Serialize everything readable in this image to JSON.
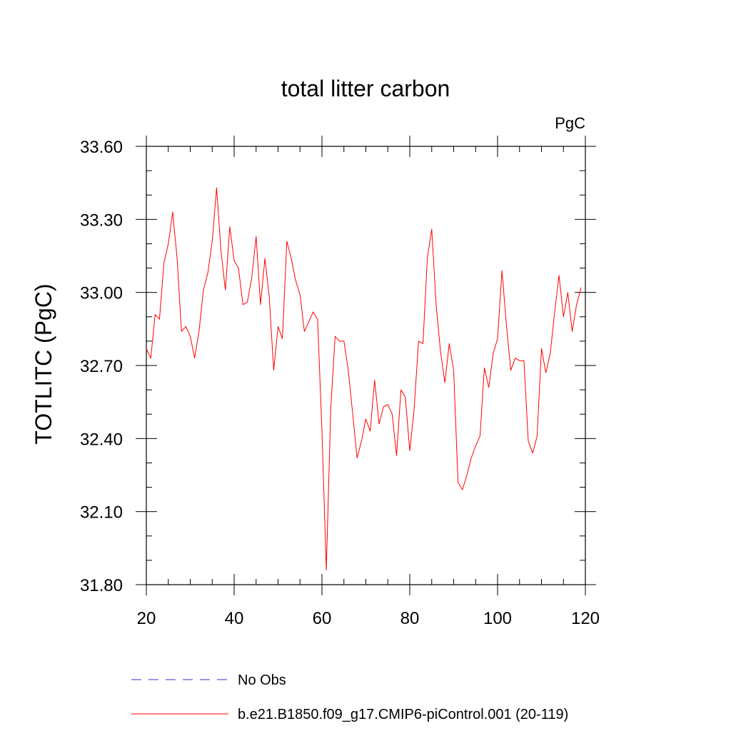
{
  "chart_data": {
    "type": "line",
    "title": "total litter carbon",
    "units": "PgC",
    "ylabel": "TOTLITC  (PgC)",
    "xlabel": "",
    "xlim": [
      20,
      120
    ],
    "ylim": [
      31.8,
      33.6
    ],
    "xticks": [
      20,
      40,
      60,
      80,
      100,
      120
    ],
    "yticks": [
      "31.80",
      "32.10",
      "32.40",
      "32.70",
      "33.00",
      "33.30",
      "33.60"
    ],
    "grid": false,
    "legend_position": "bottom",
    "series": [
      {
        "name": "No Obs",
        "color": "#3333cc",
        "style": "dashed",
        "x": [],
        "y": []
      },
      {
        "name": "b.e21.B1850.f09_g17.CMIP6-piControl.001 (20-119)",
        "color": "#ff0000",
        "style": "solid",
        "x": [
          20,
          21,
          22,
          23,
          24,
          25,
          26,
          27,
          28,
          29,
          30,
          31,
          32,
          33,
          34,
          35,
          36,
          37,
          38,
          39,
          40,
          41,
          42,
          43,
          44,
          45,
          46,
          47,
          48,
          49,
          50,
          51,
          52,
          53,
          54,
          55,
          56,
          57,
          58,
          59,
          60,
          61,
          62,
          63,
          64,
          65,
          66,
          67,
          68,
          69,
          70,
          71,
          72,
          73,
          74,
          75,
          76,
          77,
          78,
          79,
          80,
          81,
          82,
          83,
          84,
          85,
          86,
          87,
          88,
          89,
          90,
          91,
          92,
          93,
          94,
          95,
          96,
          97,
          98,
          99,
          100,
          101,
          102,
          103,
          104,
          105,
          106,
          107,
          108,
          109,
          110,
          111,
          112,
          113,
          114,
          115,
          116,
          117,
          118,
          119
        ],
        "y": [
          32.77,
          32.73,
          32.91,
          32.89,
          33.12,
          33.2,
          33.33,
          33.14,
          32.84,
          32.86,
          32.82,
          32.73,
          32.84,
          33.01,
          33.08,
          33.21,
          33.43,
          33.17,
          33.01,
          33.27,
          33.13,
          33.1,
          32.95,
          32.96,
          33.06,
          33.23,
          32.95,
          33.14,
          32.98,
          32.68,
          32.86,
          32.81,
          33.21,
          33.14,
          33.05,
          32.99,
          32.84,
          32.88,
          32.92,
          32.89,
          32.43,
          31.86,
          32.52,
          32.82,
          32.8,
          32.8,
          32.68,
          32.5,
          32.32,
          32.39,
          32.48,
          32.43,
          32.64,
          32.46,
          32.53,
          32.54,
          32.5,
          32.33,
          32.6,
          32.57,
          32.35,
          32.52,
          32.8,
          32.79,
          33.14,
          33.26,
          32.95,
          32.76,
          32.63,
          32.79,
          32.68,
          32.22,
          32.19,
          32.25,
          32.32,
          32.37,
          32.41,
          32.69,
          32.61,
          32.75,
          32.81,
          33.09,
          32.87,
          32.68,
          32.73,
          32.72,
          32.72,
          32.39,
          32.34,
          32.41,
          32.77,
          32.67,
          32.75,
          32.92,
          33.07,
          32.9,
          33.0,
          32.84,
          32.95,
          33.02
        ]
      }
    ]
  }
}
